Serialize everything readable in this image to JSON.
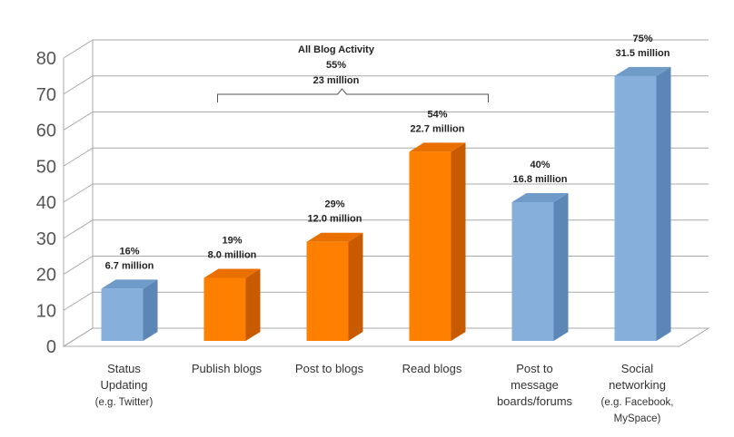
{
  "chart_data": {
    "type": "bar",
    "title": "",
    "xlabel": "",
    "ylabel": "",
    "ylim": [
      0,
      80
    ],
    "yticks": [
      0,
      10,
      20,
      30,
      40,
      50,
      60,
      70,
      80
    ],
    "grid": true,
    "bars_3d": true,
    "categories": [
      [
        "Status",
        "Updating",
        "(e.g. Twitter)"
      ],
      [
        "Publish blogs"
      ],
      [
        "Post to blogs"
      ],
      [
        "Read blogs"
      ],
      [
        "Post to",
        "message",
        "boards/forums"
      ],
      [
        "Social",
        "networking",
        "(e.g. Facebook,",
        "MySpace)"
      ]
    ],
    "values": [
      16,
      19,
      29,
      54,
      40,
      75
    ],
    "data_labels": [
      [
        "16%",
        "6.7 million"
      ],
      [
        "19%",
        "8.0 million"
      ],
      [
        "29%",
        "12.0 million"
      ],
      [
        "54%",
        "22.7 million"
      ],
      [
        "40%",
        "16.8 million"
      ],
      [
        "75%",
        "31.5 million"
      ]
    ],
    "bar_colors": [
      "#86b0db",
      "#ff7f00",
      "#ff7f00",
      "#ff7f00",
      "#86b0db",
      "#86b0db"
    ],
    "annotation": {
      "lines": [
        "All Blog Activity",
        "55%",
        "23 million"
      ],
      "spans_categories": [
        1,
        3
      ]
    }
  },
  "colors": {
    "blue_front": "#86b0db",
    "blue_side": "#5b86b5",
    "blue_top": "#6f9bc8",
    "orange_front": "#ff7f00",
    "orange_side": "#c85a00",
    "orange_top": "#e86f00",
    "grid": "#a8a8a8"
  }
}
